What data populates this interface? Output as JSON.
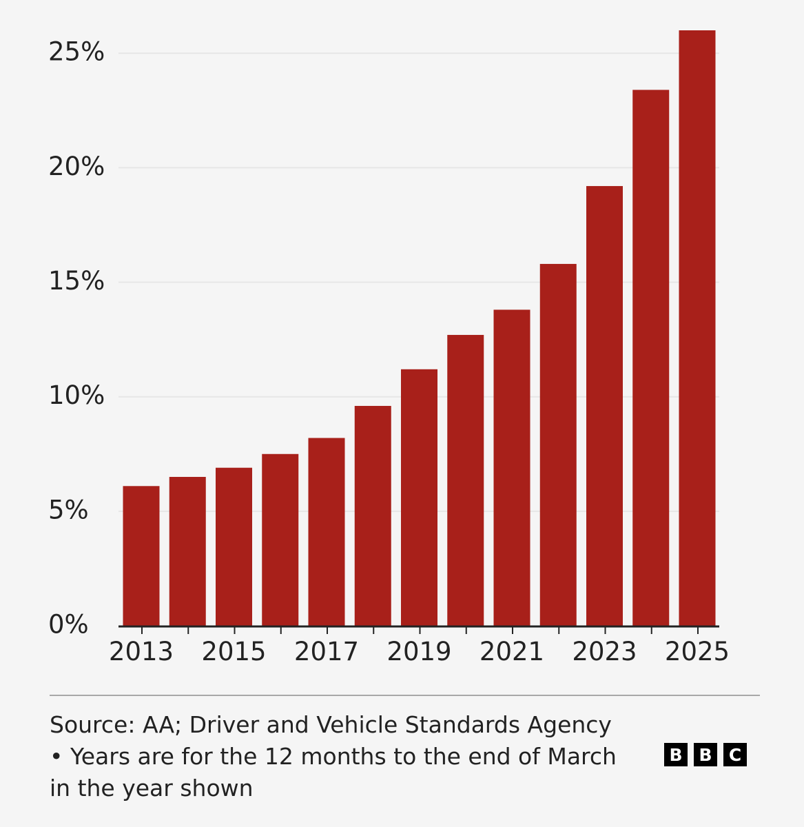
{
  "chart_data": {
    "type": "bar",
    "categories": [
      "2013",
      "2014",
      "2015",
      "2016",
      "2017",
      "2018",
      "2019",
      "2020",
      "2021",
      "2022",
      "2023",
      "2024",
      "2025"
    ],
    "values": [
      6.1,
      6.5,
      6.9,
      7.5,
      8.2,
      9.6,
      11.2,
      12.7,
      13.8,
      15.8,
      19.2,
      23.4,
      26.0
    ],
    "ylim": [
      0,
      26
    ],
    "yticks": [
      0,
      5,
      10,
      15,
      20,
      25
    ],
    "ytick_labels": [
      "0%",
      "5%",
      "10%",
      "15%",
      "20%",
      "25%"
    ],
    "xtick_labels": [
      "2013",
      "2015",
      "2017",
      "2019",
      "2021",
      "2023",
      "2025"
    ],
    "grid": true,
    "bar_color": "#a8201a",
    "gridline_color": "#e6e6e6",
    "axis_color": "#222222"
  },
  "footer": {
    "line1": "Source: AA; Driver and Vehicle Standards Agency",
    "line2": "• Years are for the 12 months to the end of March",
    "line3": "in the year shown"
  },
  "logo": {
    "letters": [
      "B",
      "B",
      "C"
    ]
  }
}
